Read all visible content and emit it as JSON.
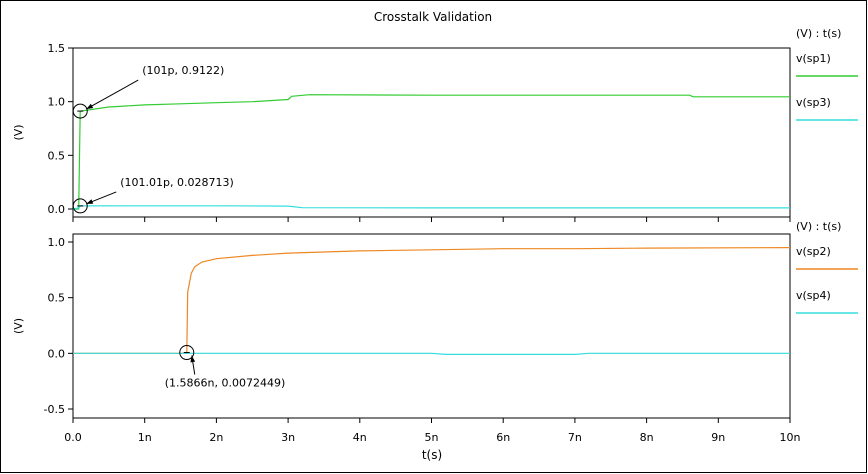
{
  "title": "Crosstalk Validation",
  "xlabel": "t(s)",
  "colors": {
    "green": "#33cc33",
    "cyan": "#33dddd",
    "orange": "#ee8822",
    "frame": "#000000"
  },
  "chart_data": [
    {
      "type": "line",
      "ylabel": "(V)",
      "legend_header": "(V) : t(s)",
      "xlim": [
        0,
        10
      ],
      "ylim": [
        -0.05,
        1.5
      ],
      "x_ticks": [
        "0.0",
        "1n",
        "2n",
        "3n",
        "4n",
        "5n",
        "6n",
        "7n",
        "8n",
        "9n",
        "10n"
      ],
      "y_ticks": [
        {
          "value": 0.0,
          "label": "0.0"
        },
        {
          "value": 0.5,
          "label": "0.5"
        },
        {
          "value": 1.0,
          "label": "1.0"
        },
        {
          "value": 1.5,
          "label": "1.5"
        }
      ],
      "series": [
        {
          "name": "v(sp1)",
          "color": "#33cc33",
          "points": [
            [
              0,
              0
            ],
            [
              0.08,
              0
            ],
            [
              0.101,
              0.912
            ],
            [
              0.5,
              0.95
            ],
            [
              1,
              0.97
            ],
            [
              1.5,
              0.98
            ],
            [
              2,
              0.99
            ],
            [
              2.5,
              1.0
            ],
            [
              3,
              1.02
            ],
            [
              3.05,
              1.05
            ],
            [
              3.3,
              1.065
            ],
            [
              5,
              1.06
            ],
            [
              8.6,
              1.06
            ],
            [
              8.65,
              1.045
            ],
            [
              10,
              1.045
            ]
          ]
        },
        {
          "name": "v(sp3)",
          "color": "#33dddd",
          "points": [
            [
              0,
              0
            ],
            [
              0.08,
              0.01
            ],
            [
              0.101,
              0.0287
            ],
            [
              1,
              0.03
            ],
            [
              2,
              0.03
            ],
            [
              3,
              0.027
            ],
            [
              3.2,
              0.012
            ],
            [
              5,
              0.01
            ],
            [
              10,
              0.01
            ]
          ]
        }
      ],
      "annotations": [
        {
          "text": "(101p, 0.9122)",
          "x": 0.101,
          "y": 0.9122
        },
        {
          "text": "(101.01p, 0.028713)",
          "x": 0.101,
          "y": 0.028713
        }
      ]
    },
    {
      "type": "line",
      "ylabel": "(V)",
      "legend_header": "(V) : t(s)",
      "xlim": [
        0,
        10
      ],
      "ylim": [
        -0.55,
        1.0
      ],
      "x_ticks": [
        "0.0",
        "1n",
        "2n",
        "3n",
        "4n",
        "5n",
        "6n",
        "7n",
        "8n",
        "9n",
        "10n"
      ],
      "y_ticks": [
        {
          "value": -0.5,
          "label": "-0.5"
        },
        {
          "value": 0.0,
          "label": "0.0"
        },
        {
          "value": 0.5,
          "label": "0.5"
        },
        {
          "value": 1.0,
          "label": "1.0"
        }
      ],
      "series": [
        {
          "name": "v(sp2)",
          "color": "#ee8822",
          "points": [
            [
              0,
              0
            ],
            [
              1.58,
              0
            ],
            [
              1.5866,
              0.0072
            ],
            [
              1.6,
              0.55
            ],
            [
              1.65,
              0.72
            ],
            [
              1.7,
              0.78
            ],
            [
              1.8,
              0.82
            ],
            [
              2,
              0.85
            ],
            [
              2.5,
              0.88
            ],
            [
              3,
              0.9
            ],
            [
              4,
              0.92
            ],
            [
              5,
              0.93
            ],
            [
              6,
              0.94
            ],
            [
              7,
              0.94
            ],
            [
              8,
              0.945
            ],
            [
              10,
              0.95
            ]
          ]
        },
        {
          "name": "v(sp4)",
          "color": "#33dddd",
          "points": [
            [
              0,
              0
            ],
            [
              5,
              0
            ],
            [
              5.2,
              -0.01
            ],
            [
              7,
              -0.01
            ],
            [
              7.2,
              0
            ],
            [
              10,
              0
            ]
          ]
        }
      ],
      "annotations": [
        {
          "text": "(1.5866n, 0.0072449)",
          "x": 1.5866,
          "y": 0.0072449
        }
      ]
    }
  ]
}
